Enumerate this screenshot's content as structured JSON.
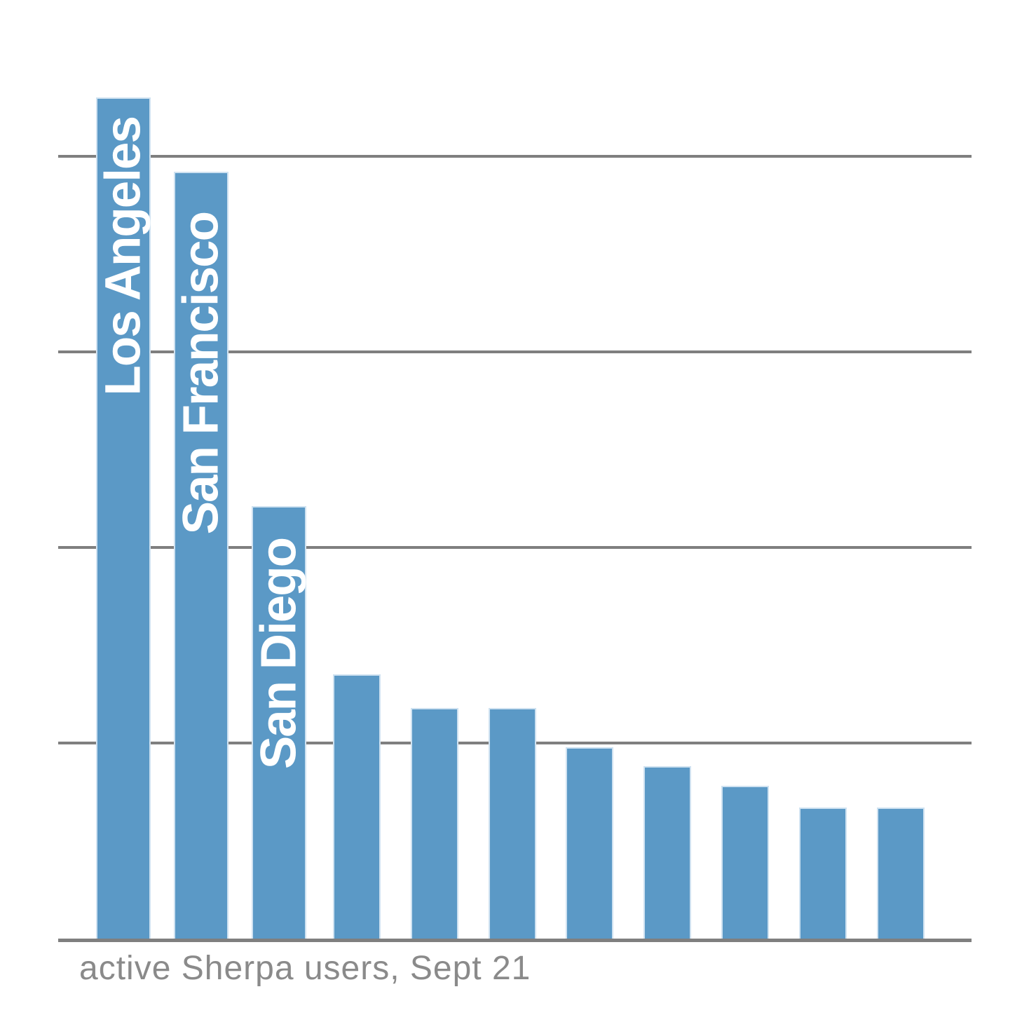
{
  "chart_data": {
    "type": "bar",
    "title": "",
    "caption": "active Sherpa users, Sept 21",
    "categories": [
      "Los Angeles",
      "San Francisco",
      "San Diego",
      "",
      "",
      "",
      "",
      "",
      "",
      "",
      ""
    ],
    "values": [
      4.3,
      3.92,
      2.21,
      1.35,
      1.18,
      1.18,
      0.98,
      0.88,
      0.78,
      0.67,
      0.67
    ],
    "value_scale": "unlabeled y-axis, values in gridline intervals",
    "ylim": [
      0,
      4.8
    ],
    "grid": "horizontal gridlines on, no tick labels",
    "legend": "none",
    "bar_color": "#5B99C6",
    "bar_border_color": "#CFE2F1",
    "gridline_color": "#7F7F7F",
    "bar_label_color": "#FFFFFF",
    "caption_color": "#8A8A8A"
  }
}
